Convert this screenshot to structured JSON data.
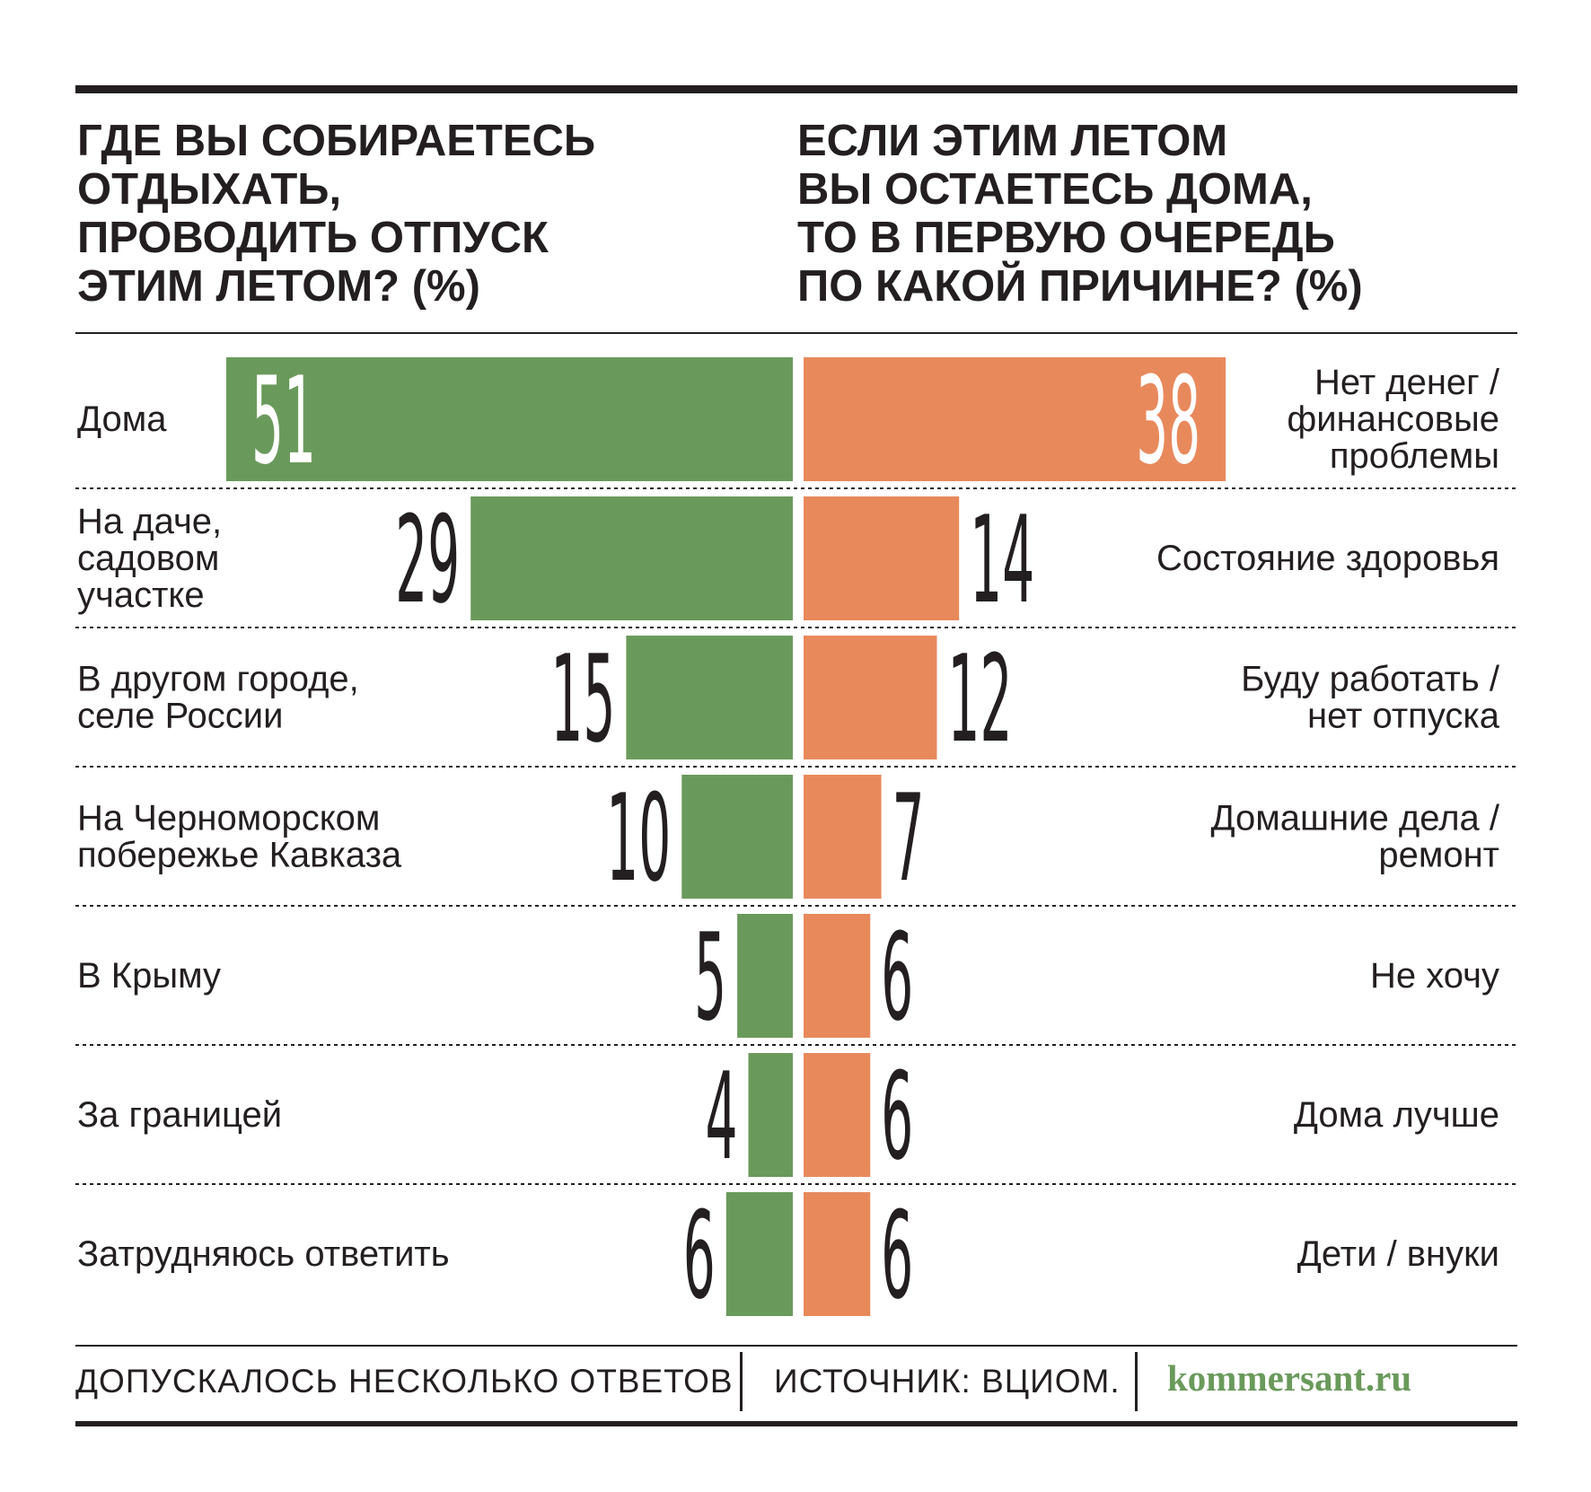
{
  "chart_data": [
    {
      "type": "bar",
      "orientation": "horizontal",
      "direction": "right-to-left",
      "title_lines": [
        "ГДЕ ВЫ СОБИРАЕТЕСЬ",
        "ОТДЫХАТЬ,",
        "ПРОВОДИТЬ ОТПУСК",
        "ЭТИМ ЛЕТОМ? (%)"
      ],
      "categories": [
        [
          "Дома"
        ],
        [
          "На даче,",
          "садовом",
          "участке"
        ],
        [
          "В другом городе,",
          "селе России"
        ],
        [
          "На Черноморском",
          "побережье Кавказа"
        ],
        [
          "В Крыму"
        ],
        [
          "За границей"
        ],
        [
          "Затрудняюсь ответить"
        ]
      ],
      "values": [
        51,
        29,
        15,
        10,
        5,
        4,
        6
      ],
      "value_labels": [
        "51",
        "29",
        "15",
        "10",
        "5",
        "4",
        "6"
      ],
      "xlim": [
        0,
        51
      ]
    },
    {
      "type": "bar",
      "orientation": "horizontal",
      "direction": "left-to-right",
      "title_lines": [
        "ЕСЛИ ЭТИМ ЛЕТОМ",
        "ВЫ ОСТАЕТЕСЬ ДОМА,",
        "ТО В ПЕРВУЮ ОЧЕРЕДЬ",
        "ПО КАКОЙ ПРИЧИНЕ? (%)"
      ],
      "categories": [
        [
          "Нет денег /",
          "финансовые",
          "проблемы"
        ],
        [
          "Состояние здоровья"
        ],
        [
          "Буду работать /",
          "нет отпуска"
        ],
        [
          "Домашние дела /",
          "ремонт"
        ],
        [
          "Не хочу"
        ],
        [
          "Дома лучше"
        ],
        [
          "Дети / внуки"
        ]
      ],
      "values": [
        38,
        14,
        12,
        7,
        6,
        6,
        6
      ],
      "value_labels": [
        "38",
        "14",
        "12",
        "7",
        "6",
        "6",
        "6"
      ],
      "xlim": [
        0,
        51
      ]
    }
  ],
  "colors": {
    "left_bars": "#6a9a5b",
    "right_bars": "#e8895c",
    "text": "#231f20",
    "brand": "#6a9a5b"
  },
  "footer": {
    "note": "ДОПУСКАЛОСЬ НЕСКОЛЬКО ОТВЕТОВ",
    "source": "ИСТОЧНИК: ВЦИОМ.",
    "brand": "kommersant.ru"
  }
}
